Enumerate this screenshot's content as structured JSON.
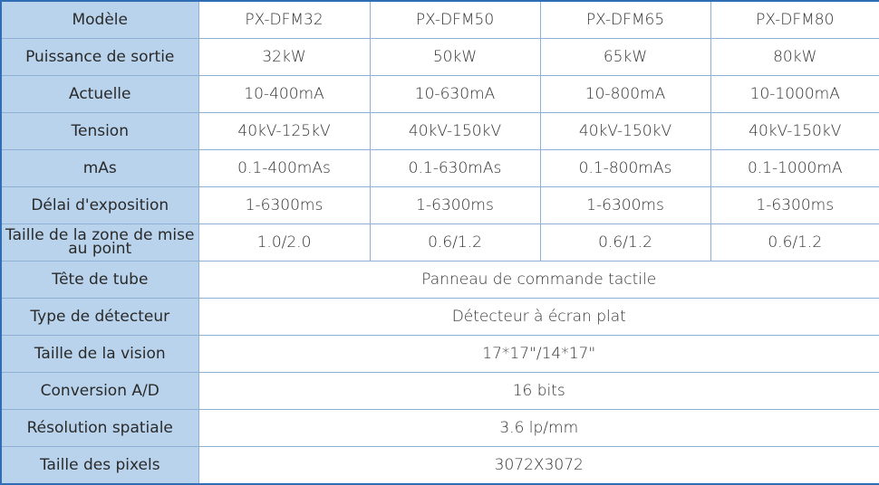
{
  "table": {
    "rows": [
      {
        "label": "Modèle",
        "values": [
          "PX-DFM32",
          "PX-DFM50",
          "PX-DFM65",
          "PX-DFM80"
        ]
      },
      {
        "label": "Puissance de sortie",
        "values": [
          "32kW",
          "50kW",
          "65kW",
          "80kW"
        ]
      },
      {
        "label": "Actuelle",
        "values": [
          "10-400mA",
          "10-630mA",
          "10-800mA",
          "10-1000mA"
        ]
      },
      {
        "label": "Tension",
        "values": [
          "40kV-125kV",
          "40kV-150kV",
          "40kV-150kV",
          "40kV-150kV"
        ]
      },
      {
        "label": "mAs",
        "values": [
          "0.1-400mAs",
          "0.1-630mAs",
          "0.1-800mAs",
          "0.1-1000mA"
        ]
      },
      {
        "label": "Délai d'exposition",
        "values": [
          "1-6300ms",
          "1-6300ms",
          "1-6300ms",
          "1-6300ms"
        ]
      },
      {
        "label": "Taille de la zone de mise au point",
        "values": [
          "1.0/2.0",
          "0.6/1.2",
          "0.6/1.2",
          "0.6/1.2"
        ]
      },
      {
        "label": "Tête de tube",
        "values": [
          "Panneau de commande tactile"
        ]
      },
      {
        "label": "Type de détecteur",
        "values": [
          "Détecteur à écran plat"
        ]
      },
      {
        "label": "Taille de la vision",
        "values": [
          "17*17\"/14*17\""
        ]
      },
      {
        "label": "Conversion A/D",
        "values": [
          "16 bits"
        ]
      },
      {
        "label": "Résolution spatiale",
        "values": [
          "3.6 lp/mm"
        ]
      },
      {
        "label": "Taille des pixels",
        "values": [
          "3072X3072"
        ]
      }
    ]
  },
  "colors": {
    "label_bg": "#b9d3ec",
    "border": "#8fb0d4",
    "outer_border": "#2f6db5"
  }
}
